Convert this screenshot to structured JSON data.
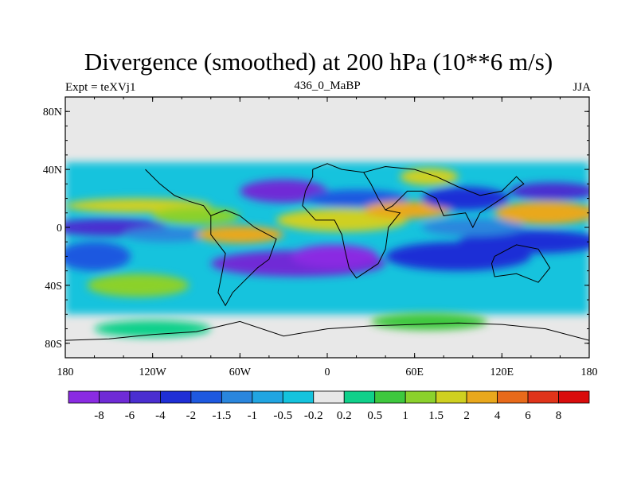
{
  "chart_data": {
    "type": "heatmap",
    "title": "Divergence (smoothed) at 200 hPa (10**6 m/s)",
    "left_label": "Expt = teXVj1",
    "center_label": "436_0_MaBP",
    "right_label": "JJA",
    "x_ticks": [
      {
        "value": -180,
        "label": "180"
      },
      {
        "value": -120,
        "label": "120W"
      },
      {
        "value": -60,
        "label": "60W"
      },
      {
        "value": 0,
        "label": "0"
      },
      {
        "value": 60,
        "label": "60E"
      },
      {
        "value": 120,
        "label": "120E"
      },
      {
        "value": 180,
        "label": "180"
      }
    ],
    "y_ticks": [
      {
        "value": 80,
        "label": "80N"
      },
      {
        "value": 40,
        "label": "40N"
      },
      {
        "value": 0,
        "label": "0"
      },
      {
        "value": -40,
        "label": "40S"
      },
      {
        "value": -80,
        "label": "80S"
      }
    ],
    "xlim": [
      -180,
      180
    ],
    "ylim": [
      -90,
      90
    ],
    "colorbar": {
      "levels": [
        "-8",
        "-6",
        "-4",
        "-2",
        "-1.5",
        "-1",
        "-0.5",
        "-0.2",
        "0.2",
        "0.5",
        "1",
        "1.5",
        "2",
        "4",
        "6",
        "8"
      ],
      "colors": [
        "#8a2be2",
        "#6f2bd6",
        "#4a2ed0",
        "#1f2fd6",
        "#1e59e0",
        "#2a86dd",
        "#21a5e1",
        "#14c3dd",
        "#e8e8e8",
        "#10d08a",
        "#3ec83e",
        "#8bd12c",
        "#cfd020",
        "#e9a81c",
        "#e86a1a",
        "#e0341a",
        "#d90c0c"
      ]
    },
    "missing_value_color": "#e8e8e8",
    "blobs": [
      {
        "lon": -20,
        "lat": -25,
        "rlon": 60,
        "rlat": 9,
        "class": 1
      },
      {
        "lon": 5,
        "lat": -20,
        "rlon": 30,
        "rlat": 8,
        "class": 0
      },
      {
        "lon": 90,
        "lat": -20,
        "rlon": 50,
        "rlat": 10,
        "class": 3
      },
      {
        "lon": 140,
        "lat": -10,
        "rlon": 50,
        "rlat": 8,
        "class": 3
      },
      {
        "lon": -130,
        "lat": -40,
        "rlon": 35,
        "rlat": 8,
        "class": 11
      },
      {
        "lon": -160,
        "lat": -20,
        "rlon": 25,
        "rlat": 10,
        "class": 4
      },
      {
        "lon": -150,
        "lat": 0,
        "rlon": 40,
        "rlat": 6,
        "class": 2
      },
      {
        "lon": -110,
        "lat": -5,
        "rlon": 30,
        "rlat": 5,
        "class": 5
      },
      {
        "lon": -130,
        "lat": 15,
        "rlon": 50,
        "rlat": 5,
        "class": 12
      },
      {
        "lon": -90,
        "lat": 8,
        "rlon": 30,
        "rlat": 6,
        "class": 11
      },
      {
        "lon": -30,
        "lat": 25,
        "rlon": 30,
        "rlat": 8,
        "class": 1
      },
      {
        "lon": 20,
        "lat": 20,
        "rlon": 35,
        "rlat": 6,
        "class": 4
      },
      {
        "lon": 10,
        "lat": 5,
        "rlon": 45,
        "rlat": 8,
        "class": 12
      },
      {
        "lon": 55,
        "lat": 12,
        "rlon": 30,
        "rlat": 6,
        "class": 13
      },
      {
        "lon": 70,
        "lat": 35,
        "rlon": 20,
        "rlat": 6,
        "class": 12
      },
      {
        "lon": 95,
        "lat": 20,
        "rlon": 30,
        "rlat": 8,
        "class": 3
      },
      {
        "lon": 100,
        "lat": 0,
        "rlon": 35,
        "rlat": 6,
        "class": 5
      },
      {
        "lon": 150,
        "lat": 10,
        "rlon": 35,
        "rlat": 8,
        "class": 13
      },
      {
        "lon": 155,
        "lat": 25,
        "rlon": 30,
        "rlat": 6,
        "class": 2
      },
      {
        "lon": -60,
        "lat": -5,
        "rlon": 30,
        "rlat": 6,
        "class": 13
      },
      {
        "lon": 70,
        "lat": -65,
        "rlon": 40,
        "rlat": 6,
        "class": 10
      },
      {
        "lon": -120,
        "lat": -70,
        "rlon": 40,
        "rlat": 6,
        "class": 9
      }
    ],
    "coastlines": [
      {
        "name": "europe-africa",
        "points": [
          [
            -10,
            40
          ],
          [
            0,
            44
          ],
          [
            10,
            40
          ],
          [
            25,
            38
          ],
          [
            30,
            30
          ],
          [
            35,
            20
          ],
          [
            40,
            12
          ],
          [
            50,
            10
          ],
          [
            42,
            0
          ],
          [
            40,
            -15
          ],
          [
            35,
            -25
          ],
          [
            20,
            -35
          ],
          [
            15,
            -28
          ],
          [
            12,
            -15
          ],
          [
            10,
            -5
          ],
          [
            5,
            5
          ],
          [
            -8,
            5
          ],
          [
            -17,
            15
          ],
          [
            -15,
            25
          ],
          [
            -10,
            35
          ],
          [
            -10,
            40
          ]
        ]
      },
      {
        "name": "asia",
        "points": [
          [
            25,
            38
          ],
          [
            40,
            42
          ],
          [
            60,
            40
          ],
          [
            75,
            35
          ],
          [
            90,
            28
          ],
          [
            105,
            22
          ],
          [
            120,
            25
          ],
          [
            130,
            35
          ],
          [
            135,
            30
          ],
          [
            120,
            20
          ],
          [
            105,
            10
          ],
          [
            100,
            0
          ],
          [
            95,
            10
          ],
          [
            80,
            8
          ],
          [
            75,
            20
          ],
          [
            65,
            25
          ],
          [
            55,
            25
          ],
          [
            45,
            15
          ],
          [
            40,
            12
          ]
        ]
      },
      {
        "name": "australia",
        "points": [
          [
            115,
            -20
          ],
          [
            130,
            -12
          ],
          [
            145,
            -15
          ],
          [
            153,
            -28
          ],
          [
            145,
            -38
          ],
          [
            130,
            -32
          ],
          [
            115,
            -34
          ],
          [
            113,
            -25
          ],
          [
            115,
            -20
          ]
        ]
      },
      {
        "name": "south-america",
        "points": [
          [
            -80,
            8
          ],
          [
            -70,
            12
          ],
          [
            -60,
            8
          ],
          [
            -50,
            0
          ],
          [
            -35,
            -8
          ],
          [
            -40,
            -22
          ],
          [
            -48,
            -28
          ],
          [
            -58,
            -38
          ],
          [
            -65,
            -45
          ],
          [
            -70,
            -54
          ],
          [
            -75,
            -45
          ],
          [
            -72,
            -30
          ],
          [
            -70,
            -18
          ],
          [
            -80,
            -5
          ],
          [
            -80,
            8
          ]
        ]
      },
      {
        "name": "north-america",
        "points": [
          [
            -125,
            40
          ],
          [
            -115,
            30
          ],
          [
            -105,
            22
          ],
          [
            -95,
            18
          ],
          [
            -85,
            15
          ],
          [
            -80,
            8
          ]
        ]
      },
      {
        "name": "antarctica",
        "points": [
          [
            -180,
            -78
          ],
          [
            -150,
            -77
          ],
          [
            -120,
            -74
          ],
          [
            -90,
            -72
          ],
          [
            -60,
            -65
          ],
          [
            -30,
            -75
          ],
          [
            0,
            -70
          ],
          [
            30,
            -68
          ],
          [
            60,
            -67
          ],
          [
            90,
            -66
          ],
          [
            120,
            -67
          ],
          [
            150,
            -70
          ],
          [
            180,
            -78
          ]
        ]
      }
    ]
  }
}
